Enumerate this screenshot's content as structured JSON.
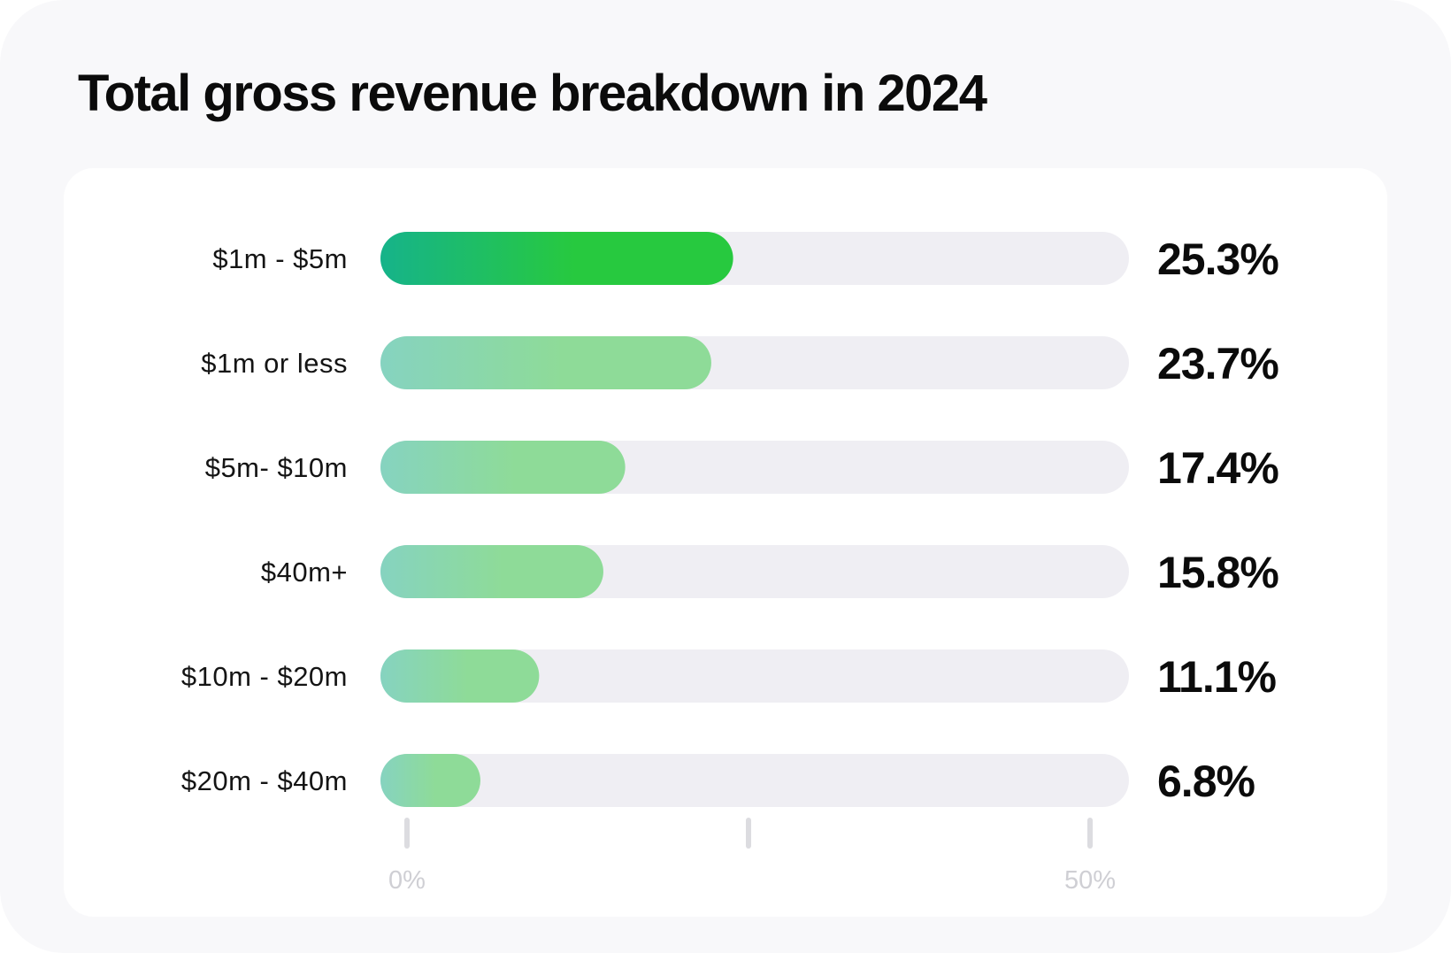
{
  "chart_data": {
    "type": "bar",
    "orientation": "horizontal",
    "title": "Total gross revenue breakdown in 2024",
    "categories": [
      "$1m - $5m",
      "$1m or less",
      "$5m- $10m",
      "$40m+",
      "$10m - $20m",
      "$20m - $40m"
    ],
    "values": [
      25.3,
      23.7,
      17.4,
      15.8,
      11.1,
      6.8
    ],
    "value_labels": [
      "25.3%",
      "23.7%",
      "17.4%",
      "15.8%",
      "11.1%",
      "6.8%"
    ],
    "xlim": [
      0,
      50
    ],
    "ticks": [
      0,
      25,
      50
    ],
    "tick_labels": [
      "0%",
      "",
      "50%"
    ],
    "xlabel": "",
    "ylabel": "",
    "grid": false
  },
  "colors": {
    "highlight_start": "#16b38a",
    "highlight_end": "#27c93f",
    "muted_start": "#86d3c0",
    "muted_end": "#8edb98",
    "track": "#efeef3",
    "tick": "#dcdce0"
  }
}
